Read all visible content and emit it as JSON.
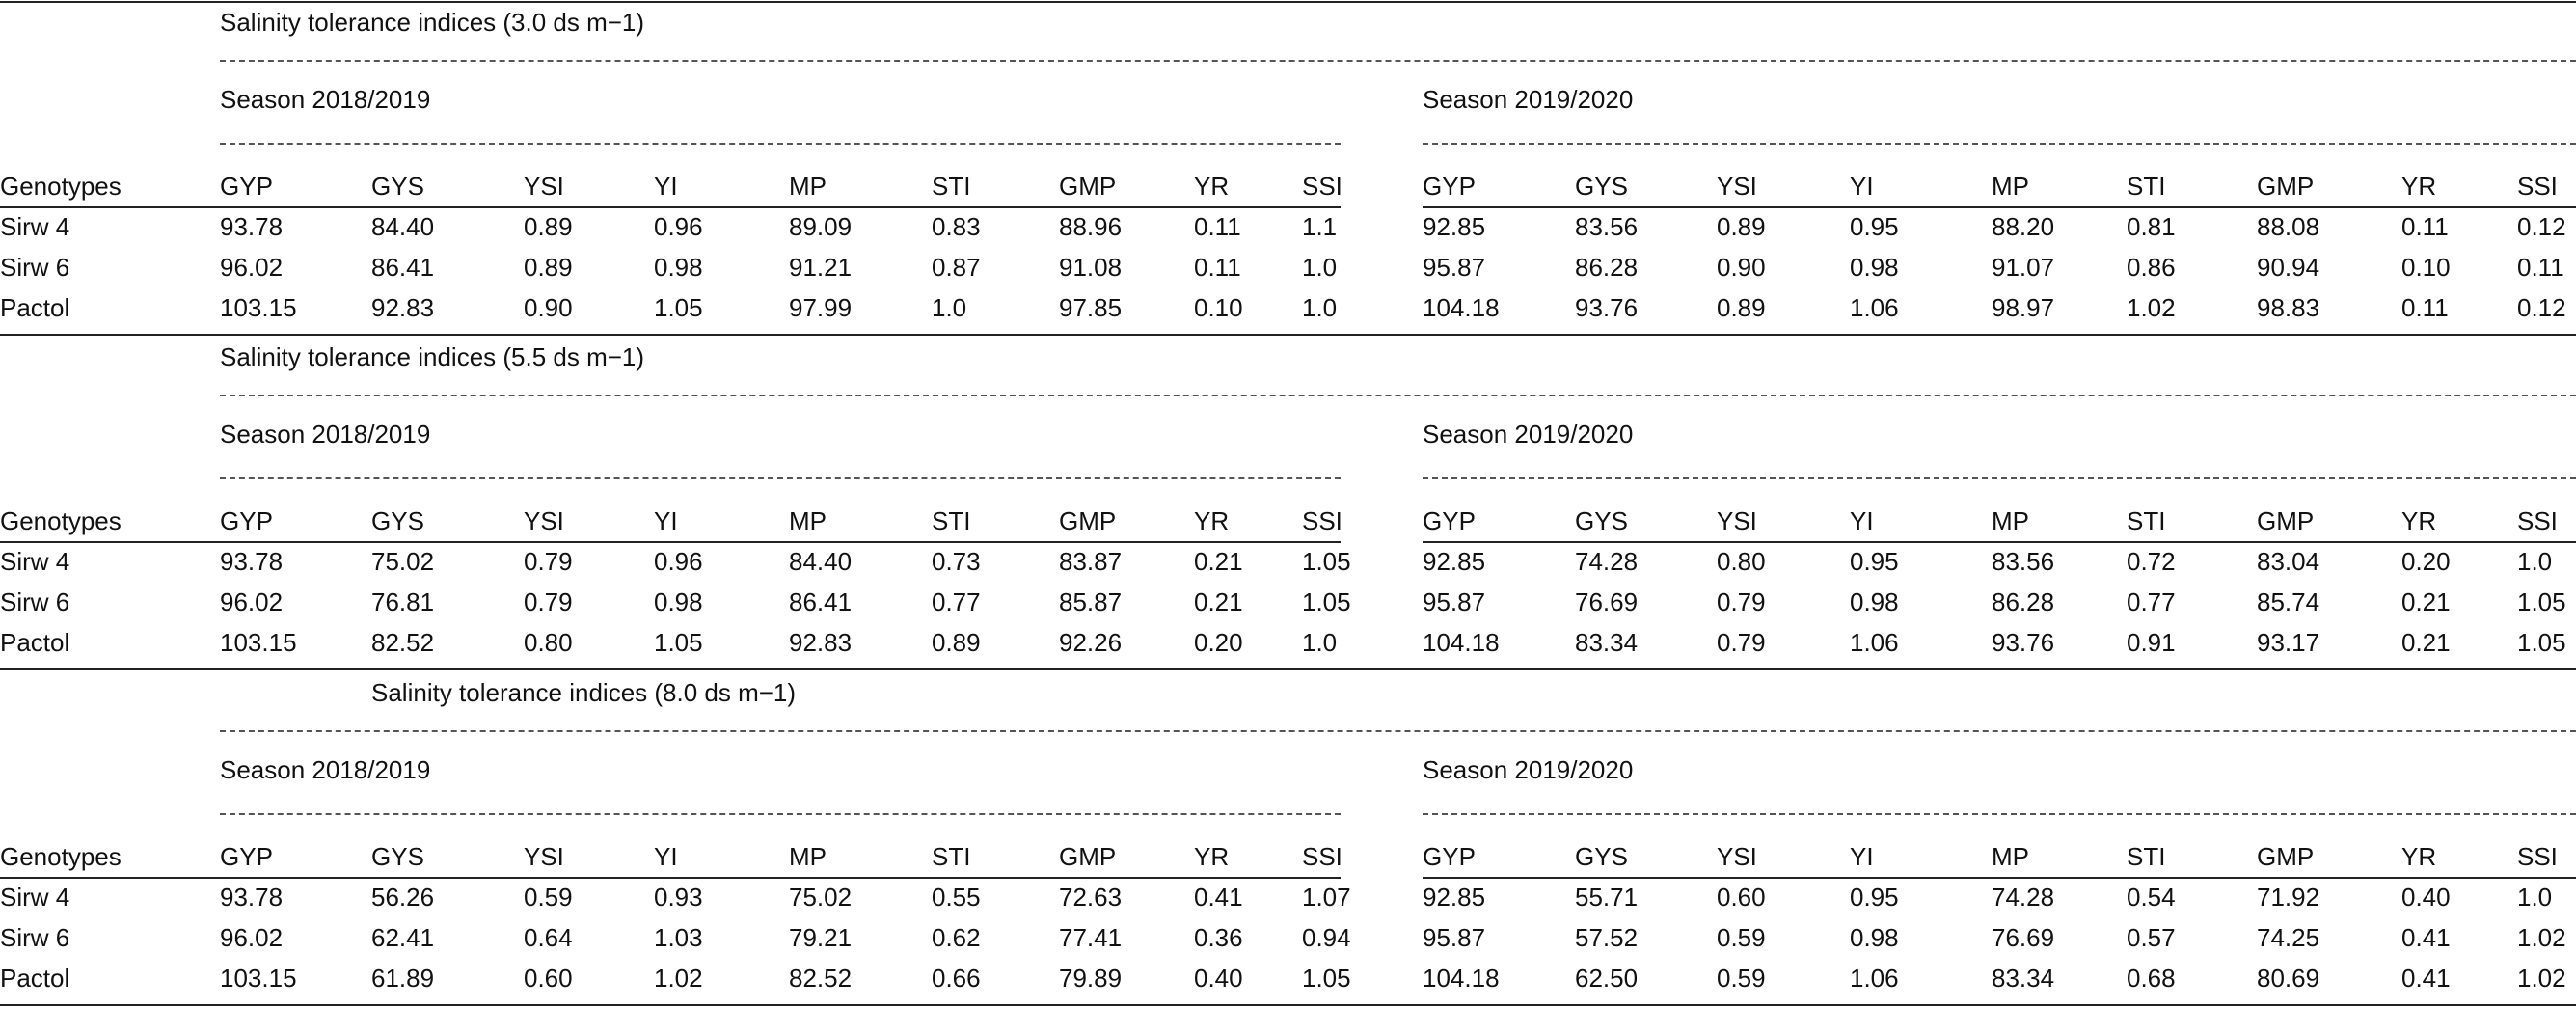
{
  "table": {
    "first_column_header": "Genotypes",
    "season_labels": [
      "Season 2018/2019",
      "Season 2019/2020"
    ],
    "index_headers": [
      "GYP",
      "GYS",
      "YSI",
      "YI",
      "MP",
      "STI",
      "GMP",
      "YR",
      "SSI"
    ],
    "genotypes": [
      "Sirw 4",
      "Sirw 6",
      "Pactol"
    ],
    "sections": [
      {
        "title": "Salinity tolerance indices (3.0 ds m−1)",
        "rows": [
          {
            "genotype": "Sirw 4",
            "s1": [
              "93.78",
              "84.40",
              "0.89",
              "0.96",
              "89.09",
              "0.83",
              "88.96",
              "0.11",
              "1.1"
            ],
            "s2": [
              "92.85",
              "83.56",
              "0.89",
              "0.95",
              "88.20",
              "0.81",
              "88.08",
              "0.11",
              "0.12"
            ]
          },
          {
            "genotype": "Sirw 6",
            "s1": [
              "96.02",
              "86.41",
              "0.89",
              "0.98",
              "91.21",
              "0.87",
              "91.08",
              "0.11",
              "1.0"
            ],
            "s2": [
              "95.87",
              "86.28",
              "0.90",
              "0.98",
              "91.07",
              "0.86",
              "90.94",
              "0.10",
              "0.11"
            ]
          },
          {
            "genotype": "Pactol",
            "s1": [
              "103.15",
              "92.83",
              "0.90",
              "1.05",
              "97.99",
              "1.0",
              "97.85",
              "0.10",
              "1.0"
            ],
            "s2": [
              "104.18",
              "93.76",
              "0.89",
              "1.06",
              "98.97",
              "1.02",
              "98.83",
              "0.11",
              "0.12"
            ]
          }
        ]
      },
      {
        "title": "Salinity tolerance indices (5.5 ds m−1)",
        "rows": [
          {
            "genotype": "Sirw 4",
            "s1": [
              "93.78",
              "75.02",
              "0.79",
              "0.96",
              "84.40",
              "0.73",
              "83.87",
              "0.21",
              "1.05"
            ],
            "s2": [
              "92.85",
              "74.28",
              "0.80",
              "0.95",
              "83.56",
              "0.72",
              "83.04",
              "0.20",
              "1.0"
            ]
          },
          {
            "genotype": "Sirw 6",
            "s1": [
              "96.02",
              "76.81",
              "0.79",
              "0.98",
              "86.41",
              "0.77",
              "85.87",
              "0.21",
              "1.05"
            ],
            "s2": [
              "95.87",
              "76.69",
              "0.79",
              "0.98",
              "86.28",
              "0.77",
              "85.74",
              "0.21",
              "1.05"
            ]
          },
          {
            "genotype": "Pactol",
            "s1": [
              "103.15",
              "82.52",
              "0.80",
              "1.05",
              "92.83",
              "0.89",
              "92.26",
              "0.20",
              "1.0"
            ],
            "s2": [
              "104.18",
              "83.34",
              "0.79",
              "1.06",
              "93.76",
              "0.91",
              "93.17",
              "0.21",
              "1.05"
            ]
          }
        ]
      },
      {
        "title": "Salinity tolerance indices (8.0 ds m−1)",
        "rows": [
          {
            "genotype": "Sirw 4",
            "s1": [
              "93.78",
              "56.26",
              "0.59",
              "0.93",
              "75.02",
              "0.55",
              "72.63",
              "0.41",
              "1.07"
            ],
            "s2": [
              "92.85",
              "55.71",
              "0.60",
              "0.95",
              "74.28",
              "0.54",
              "71.92",
              "0.40",
              "1.0"
            ]
          },
          {
            "genotype": "Sirw 6",
            "s1": [
              "96.02",
              "62.41",
              "0.64",
              "1.03",
              "79.21",
              "0.62",
              "77.41",
              "0.36",
              "0.94"
            ],
            "s2": [
              "95.87",
              "57.52",
              "0.59",
              "0.98",
              "76.69",
              "0.57",
              "74.25",
              "0.41",
              "1.02"
            ]
          },
          {
            "genotype": "Pactol",
            "s1": [
              "103.15",
              "61.89",
              "0.60",
              "1.02",
              "82.52",
              "0.66",
              "79.89",
              "0.40",
              "1.05"
            ],
            "s2": [
              "104.18",
              "62.50",
              "0.59",
              "1.06",
              "83.34",
              "0.68",
              "80.69",
              "0.41",
              "1.02"
            ]
          }
        ]
      }
    ]
  }
}
